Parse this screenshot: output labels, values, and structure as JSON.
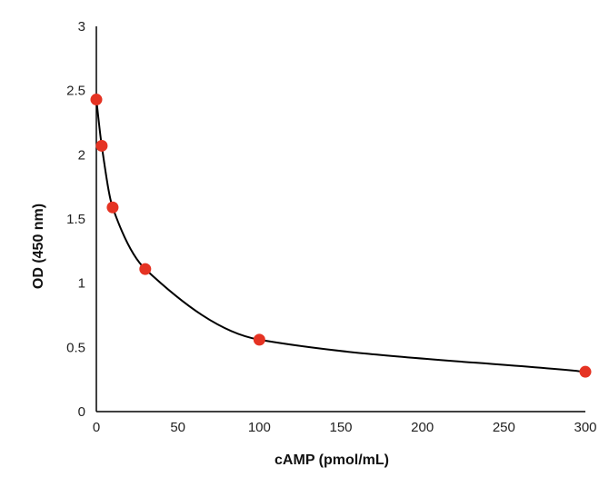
{
  "chart_data": {
    "type": "scatter",
    "title": "",
    "xlabel": "cAMP (pmol/mL)",
    "ylabel": "OD (450 nm)",
    "xlim": [
      0,
      300
    ],
    "ylim": [
      0,
      3
    ],
    "xticks": [
      0,
      50,
      100,
      150,
      200,
      250,
      300
    ],
    "yticks": [
      0,
      0.5,
      1,
      1.5,
      2,
      2.5,
      3
    ],
    "grid": false,
    "legend": "none",
    "series": [
      {
        "x": [
          0,
          3.3,
          10,
          30,
          100,
          300
        ],
        "y": [
          2.43,
          2.07,
          1.59,
          1.11,
          0.56,
          0.31
        ],
        "marker_color": "#e53323",
        "fit_line_color": "#000000",
        "fit": "smooth curve"
      }
    ]
  }
}
